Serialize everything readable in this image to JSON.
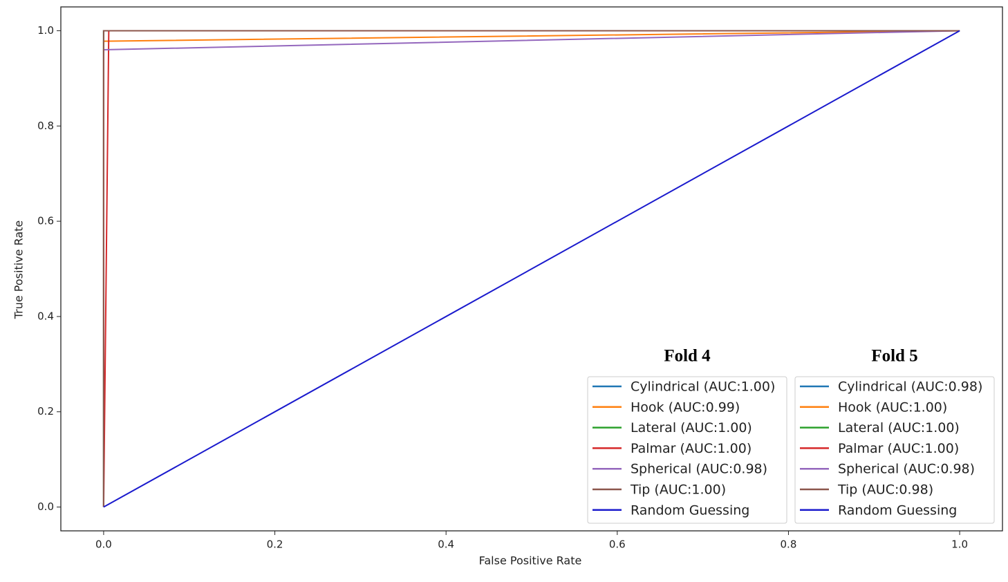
{
  "chart_data": {
    "type": "line",
    "xlabel": "False Positive Rate",
    "ylabel": "True Positive Rate",
    "xlim": [
      -0.05,
      1.05
    ],
    "ylim": [
      -0.05,
      1.05
    ],
    "xticks": [
      {
        "value": 0,
        "label": "0.0"
      },
      {
        "value": 0.2,
        "label": "0.2"
      },
      {
        "value": 0.4,
        "label": "0.4"
      },
      {
        "value": 0.6,
        "label": "0.6"
      },
      {
        "value": 0.8,
        "label": "0.8"
      },
      {
        "value": 1,
        "label": "1.0"
      }
    ],
    "yticks": [
      {
        "value": 0,
        "label": "0.0"
      },
      {
        "value": 0.2,
        "label": "0.2"
      },
      {
        "value": 0.4,
        "label": "0.4"
      },
      {
        "value": 0.6,
        "label": "0.6"
      },
      {
        "value": 0.8,
        "label": "0.8"
      },
      {
        "value": 1,
        "label": "1.0"
      }
    ],
    "series": [
      {
        "color": "#1f77b4",
        "x": [
          0,
          0,
          1
        ],
        "values": [
          0,
          1,
          1
        ]
      },
      {
        "color": "#ff7f0e",
        "x": [
          0,
          0,
          1
        ],
        "values": [
          0,
          0.978,
          1
        ]
      },
      {
        "color": "#2ca02c",
        "x": [
          0,
          0,
          1
        ],
        "values": [
          0,
          1,
          1
        ]
      },
      {
        "color": "#d62728",
        "x": [
          0,
          0.006,
          1
        ],
        "values": [
          0,
          1,
          1
        ]
      },
      {
        "color": "#9467bd",
        "x": [
          0,
          0,
          1
        ],
        "values": [
          0,
          0.96,
          1
        ]
      },
      {
        "color": "#8c564b",
        "x": [
          0,
          0,
          1
        ],
        "values": [
          0,
          1,
          1
        ]
      },
      {
        "color": "#1a1acd",
        "x": [
          0,
          1
        ],
        "values": [
          0,
          1
        ]
      }
    ],
    "legends": [
      {
        "title": "Fold 4",
        "labels": [
          "Cylindrical (AUC:1.00)",
          "Hook (AUC:0.99)",
          "Lateral (AUC:1.00)",
          "Palmar (AUC:1.00)",
          "Spherical (AUC:0.98)",
          "Tip (AUC:1.00)",
          "Random Guessing"
        ]
      },
      {
        "title": "Fold 5",
        "labels": [
          "Cylindrical (AUC:0.98)",
          "Hook (AUC:1.00)",
          "Lateral (AUC:1.00)",
          "Palmar (AUC:1.00)",
          "Spherical (AUC:0.98)",
          "Tip (AUC:0.98)",
          "Random Guessing"
        ]
      }
    ]
  }
}
